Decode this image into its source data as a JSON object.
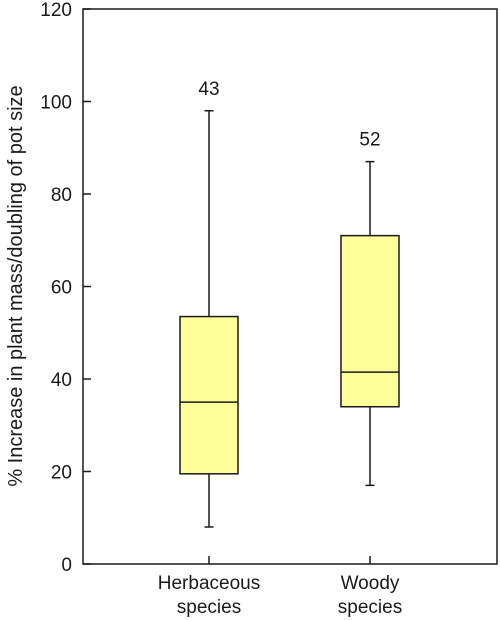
{
  "chart_data": {
    "type": "boxplot",
    "title": "",
    "xlabel": "",
    "ylabel": "% Increase in plant mass/doubling of pot size",
    "ylim": [
      0,
      120
    ],
    "yticks": [
      0,
      20,
      40,
      60,
      80,
      100,
      120
    ],
    "grid": false,
    "box_color": "#ffff99",
    "categories": [
      {
        "line1": "Herbaceous",
        "line2": "species",
        "n": "43",
        "min": 8,
        "q1": 19.5,
        "median": 35,
        "q3": 53.5,
        "max": 98
      },
      {
        "line1": "Woody",
        "line2": "species",
        "n": "52",
        "min": 17,
        "q1": 34,
        "median": 41.5,
        "q3": 71,
        "max": 87
      }
    ]
  }
}
